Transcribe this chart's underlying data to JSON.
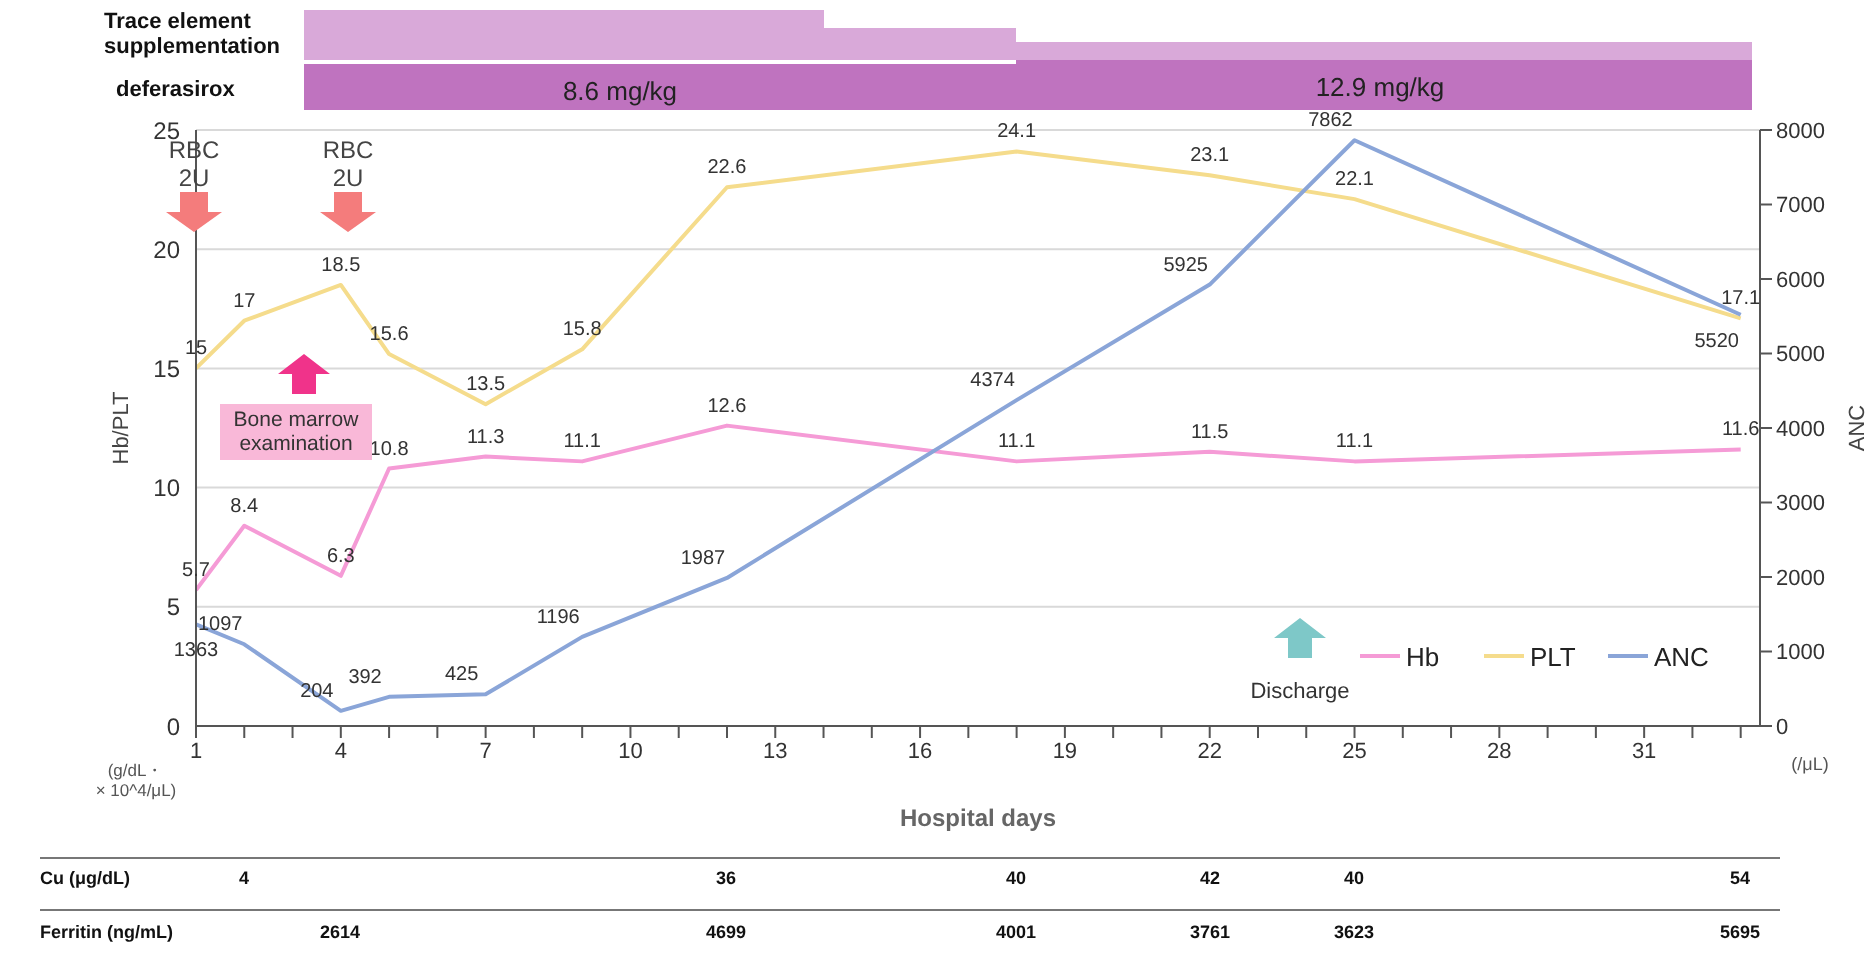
{
  "chart_data": [
    {
      "type": "line",
      "xlabel": "Hospital days",
      "ylabel": "Hb/PLT",
      "y2label": "ANC",
      "x": [
        1,
        2,
        4,
        5,
        7,
        9,
        12,
        18,
        22,
        25,
        33
      ],
      "series": [
        {
          "name": "Hb",
          "color": "#f59bd6",
          "values": [
            5.7,
            8.4,
            6.3,
            10.8,
            11.3,
            11.1,
            12.6,
            11.1,
            11.5,
            11.1,
            11.6
          ]
        },
        {
          "name": "PLT",
          "color": "#f5dc8c",
          "values": [
            15,
            17,
            18.5,
            15.6,
            13.5,
            15.8,
            22.6,
            24.1,
            23.1,
            22.1,
            17.1
          ]
        },
        {
          "name": "ANC",
          "color": "#8aa5d8",
          "axis": "y2",
          "values": [
            1363,
            1097,
            204,
            392,
            425,
            1196,
            1987,
            4374,
            5925,
            7862,
            5520
          ]
        }
      ],
      "xlim": [
        1,
        33.4
      ],
      "xticks": [
        1,
        {
          "value": 2,
          "label": null
        },
        {
          "value": 3,
          "label": null
        },
        4,
        {
          "value": 5,
          "label": null
        },
        {
          "value": 6,
          "label": null
        },
        7,
        {
          "value": 8,
          "label": null
        },
        {
          "value": 9,
          "label": null
        },
        10,
        {
          "value": 11,
          "label": null
        },
        {
          "value": 12,
          "label": null
        },
        13,
        {
          "value": 14,
          "label": null
        },
        {
          "value": 15,
          "label": null
        },
        16,
        {
          "value": 17,
          "label": null
        },
        {
          "value": 18,
          "label": null
        },
        19,
        {
          "value": 20,
          "label": null
        },
        {
          "value": 21,
          "label": null
        },
        22,
        {
          "value": 23,
          "label": null
        },
        {
          "value": 24,
          "label": null
        },
        25,
        {
          "value": 26,
          "label": null
        },
        {
          "value": 27,
          "label": null
        },
        28,
        {
          "value": 29,
          "label": null
        },
        {
          "value": 30,
          "label": null
        },
        31,
        {
          "value": 32,
          "label": null
        },
        {
          "value": 33,
          "label": null
        }
      ],
      "ylim": [
        0,
        25
      ],
      "yticks": [
        0,
        5,
        10,
        15,
        20,
        25
      ],
      "y2lim": [
        0,
        8000
      ],
      "y2ticks": [
        0,
        1000,
        2000,
        3000,
        4000,
        5000,
        6000,
        7000,
        8000
      ],
      "grid": "y",
      "legend": "bottom right",
      "marker": "none",
      "line_style": "solid",
      "data_labels": true,
      "annotations": [
        "RBC\n2U",
        "RBC\n2U",
        "Bone marrow\nexamination",
        "Discharge",
        "Trace element\nsupplementation",
        "deferasirox",
        "(g/dL・\n× 10^4/μL)",
        "(/μL)",
        "8.6 mg/kg",
        "12.9 mg/kg"
      ]
    },
    {
      "type": "other",
      "annotations": [
        "Cu (μg/dL)",
        "4",
        "36",
        "40",
        "42",
        "40",
        "54",
        "Ferritin (ng/mL)",
        "2614",
        "4699",
        "4001",
        "3761",
        "3623",
        "5695"
      ]
    }
  ]
}
